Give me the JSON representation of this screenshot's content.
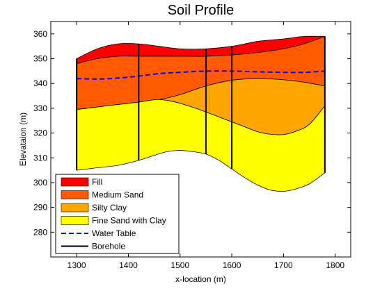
{
  "chart_data": {
    "type": "area",
    "title": "Soil Profile",
    "xlabel": "x-location (m)",
    "ylabel": "Elevataion (m)",
    "xlim": [
      1250,
      1830
    ],
    "ylim": [
      270,
      365
    ],
    "xticks": [
      1300,
      1400,
      1500,
      1600,
      1700,
      1800
    ],
    "yticks": [
      280,
      290,
      300,
      310,
      320,
      330,
      340,
      350,
      360
    ],
    "grid": false,
    "legend_position": "bottom-left",
    "x_range": [
      1300,
      1780
    ],
    "boundaries": {
      "ground_surface": {
        "x": [
          1300,
          1340,
          1380,
          1420,
          1460,
          1500,
          1550,
          1600,
          1650,
          1700,
          1740,
          1780
        ],
        "y": [
          350,
          354,
          356,
          356,
          355,
          354,
          354,
          355,
          357,
          358,
          359,
          359
        ]
      },
      "fill_bottom": {
        "x": [
          1300,
          1340,
          1380,
          1420,
          1460,
          1500,
          1550,
          1600,
          1650,
          1700,
          1740,
          1780
        ],
        "y": [
          348,
          350,
          351,
          351,
          351,
          351,
          351,
          351.5,
          352.5,
          354,
          356,
          359
        ]
      },
      "medium_sand_bottom": {
        "x": [
          1300,
          1340,
          1380,
          1420,
          1460,
          1500,
          1550,
          1600,
          1650,
          1700,
          1740,
          1780
        ],
        "y": [
          329.5,
          330.5,
          331.5,
          332.5,
          333.5,
          335.5,
          339,
          341.3,
          342,
          341.5,
          340.5,
          339
        ]
      },
      "silty_clay_bottom": {
        "x": [
          1300,
          1340,
          1380,
          1420,
          1445,
          1460,
          1480,
          1500,
          1530,
          1550,
          1575,
          1600,
          1625,
          1650,
          1675,
          1700,
          1725,
          1750,
          1780
        ],
        "y": [
          329.5,
          330.5,
          331.5,
          332.5,
          333.3,
          333.5,
          333,
          332,
          330,
          328.5,
          326.5,
          324.5,
          322.5,
          320.5,
          319.5,
          319.4,
          320.8,
          323.5,
          331
        ]
      },
      "fine_sand_bottom": {
        "x": [
          1300,
          1340,
          1380,
          1420,
          1450,
          1475,
          1500,
          1525,
          1550,
          1575,
          1600,
          1625,
          1650,
          1675,
          1700,
          1725,
          1750,
          1780
        ],
        "y": [
          305,
          306,
          307,
          309,
          311,
          312.5,
          313,
          312.5,
          311.5,
          309,
          305.5,
          302,
          299,
          297,
          296.5,
          297.5,
          299.5,
          304
        ]
      }
    },
    "series": [
      {
        "name": "Fill",
        "color": "#FF0000"
      },
      {
        "name": "Medium Sand",
        "color": "#FF5A00"
      },
      {
        "name": "Silty Clay",
        "color": "#FFA500"
      },
      {
        "name": "Fine Sand with Clay",
        "color": "#FFFF00"
      },
      {
        "name": "Water Table",
        "color": "#0000FF",
        "style": "dashed",
        "x": [
          1300,
          1340,
          1380,
          1420,
          1460,
          1500,
          1550,
          1600,
          1650,
          1700,
          1740,
          1780
        ],
        "y": [
          342,
          341.8,
          342.2,
          343,
          344,
          344.5,
          345,
          345,
          344.7,
          344.5,
          344.5,
          345
        ]
      },
      {
        "name": "Borehole",
        "color": "#000000",
        "style": "solid",
        "x": [
          1300,
          1420,
          1550,
          1600,
          1780
        ]
      }
    ]
  }
}
